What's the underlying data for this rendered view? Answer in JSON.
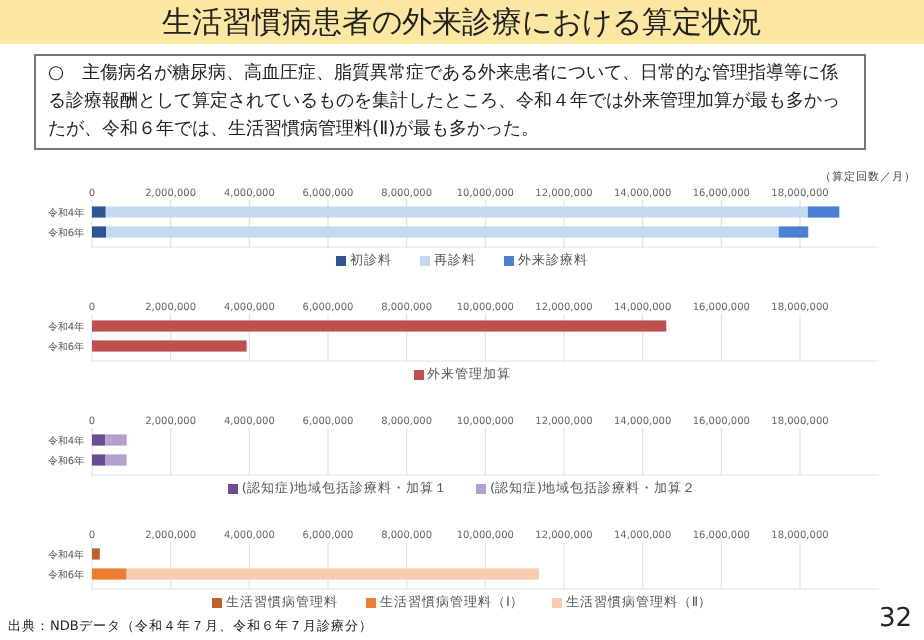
{
  "chart_data": [
    {
      "type": "bar",
      "orientation": "horizontal",
      "stacked": true,
      "title": "生活習慣病患者の外来診療における算定状況",
      "subtitle": "○　主傷病名が糖尿病、高血圧症、脂質異常症である外来患者について、日常的な管理指導等に係る診療報酬として算定されているものを集計したところ、令和４年では外来管理加算が最も多かったが、令和６年では、生活習慣病管理料(Ⅱ)が最も多かった。",
      "xlabel": "（算定回数／月）",
      "categories": [
        "令和4年",
        "令和6年"
      ],
      "xlim": [
        0,
        20000000
      ],
      "xticks": [
        {
          "value": 0,
          "label": "0"
        },
        {
          "value": 2000000,
          "label": "2,000,000"
        },
        {
          "value": 4000000,
          "label": "4,000,000"
        },
        {
          "value": 6000000,
          "label": "6,000,000"
        },
        {
          "value": 8000000,
          "label": "8,000,000"
        },
        {
          "value": 10000000,
          "label": "10,000,000"
        },
        {
          "value": 12000000,
          "label": "12,000,000"
        },
        {
          "value": 14000000,
          "label": "14,000,000"
        },
        {
          "value": 16000000,
          "label": "16,000,000"
        },
        {
          "value": 18000000,
          "label": "18,000,000"
        }
      ],
      "grid": "x",
      "legend": "bottom",
      "series": [
        {
          "name": "初診料",
          "color": "#2f5597",
          "values": [
            350000,
            360000
          ]
        },
        {
          "name": "再診料",
          "color": "#c5d9f1",
          "values": [
            17850000,
            17100000
          ]
        },
        {
          "name": "外来診療料",
          "color": "#4a7fd4",
          "values": [
            800000,
            750000
          ]
        }
      ]
    },
    {
      "type": "bar",
      "orientation": "horizontal",
      "stacked": true,
      "categories": [
        "令和4年",
        "令和6年"
      ],
      "xlim": [
        0,
        20000000
      ],
      "xticks": [
        {
          "value": 0,
          "label": "0"
        },
        {
          "value": 2000000,
          "label": "2,000,000"
        },
        {
          "value": 4000000,
          "label": "4,000,000"
        },
        {
          "value": 6000000,
          "label": "6,000,000"
        },
        {
          "value": 8000000,
          "label": "8,000,000"
        },
        {
          "value": 10000000,
          "label": "10,000,000"
        },
        {
          "value": 12000000,
          "label": "12,000,000"
        },
        {
          "value": 14000000,
          "label": "14,000,000"
        },
        {
          "value": 16000000,
          "label": "16,000,000"
        },
        {
          "value": 18000000,
          "label": "18,000,000"
        }
      ],
      "grid": "x",
      "legend": "bottom",
      "series": [
        {
          "name": "外来管理加算",
          "color": "#c0504d",
          "values": [
            14600000,
            3930000
          ]
        }
      ]
    },
    {
      "type": "bar",
      "orientation": "horizontal",
      "stacked": true,
      "categories": [
        "令和4年",
        "令和6年"
      ],
      "xlim": [
        0,
        20000000
      ],
      "xticks": [
        {
          "value": 0,
          "label": "0"
        },
        {
          "value": 2000000,
          "label": "2,000,000"
        },
        {
          "value": 4000000,
          "label": "4,000,000"
        },
        {
          "value": 6000000,
          "label": "6,000,000"
        },
        {
          "value": 8000000,
          "label": "8,000,000"
        },
        {
          "value": 10000000,
          "label": "10,000,000"
        },
        {
          "value": 12000000,
          "label": "12,000,000"
        },
        {
          "value": 14000000,
          "label": "14,000,000"
        },
        {
          "value": 16000000,
          "label": "16,000,000"
        },
        {
          "value": 18000000,
          "label": "18,000,000"
        }
      ],
      "grid": "x",
      "legend": "bottom",
      "series": [
        {
          "name": "(認知症)地域包括診療料・加算１",
          "color": "#6a4c93",
          "values": [
            340000,
            330000
          ]
        },
        {
          "name": "(認知症)地域包括診療料・加算２",
          "color": "#b4a0cc",
          "values": [
            540000,
            550000
          ]
        }
      ]
    },
    {
      "type": "bar",
      "orientation": "horizontal",
      "stacked": true,
      "categories": [
        "令和4年",
        "令和6年"
      ],
      "xlim": [
        0,
        20000000
      ],
      "xticks": [
        {
          "value": 0,
          "label": "0"
        },
        {
          "value": 2000000,
          "label": "2,000,000"
        },
        {
          "value": 4000000,
          "label": "4,000,000"
        },
        {
          "value": 6000000,
          "label": "6,000,000"
        },
        {
          "value": 8000000,
          "label": "8,000,000"
        },
        {
          "value": 10000000,
          "label": "10,000,000"
        },
        {
          "value": 12000000,
          "label": "12,000,000"
        },
        {
          "value": 14000000,
          "label": "14,000,000"
        },
        {
          "value": 16000000,
          "label": "16,000,000"
        },
        {
          "value": 18000000,
          "label": "18,000,000"
        }
      ],
      "grid": "x",
      "legend": "bottom",
      "annotations": [
        "出典：NDBデータ（令和４年７月、令和６年７月診療分）",
        "32"
      ],
      "series": [
        {
          "name": "生活習慣病管理料",
          "color": "#c0612b",
          "values": [
            200000,
            null
          ]
        },
        {
          "name": "生活習慣病管理料（Ⅰ）",
          "color": "#ed7d31",
          "values": [
            null,
            880000
          ]
        },
        {
          "name": "生活習慣病管理料（Ⅱ）",
          "color": "#f8cbad",
          "values": [
            null,
            10480000
          ]
        }
      ]
    }
  ]
}
